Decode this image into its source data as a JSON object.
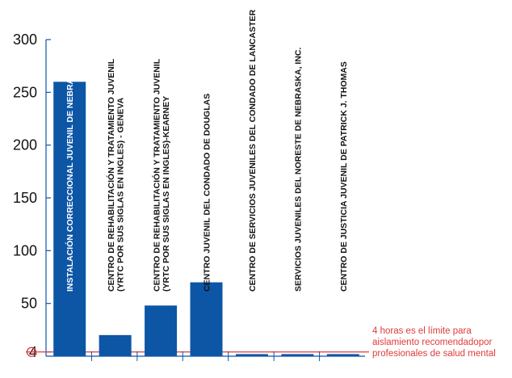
{
  "chart_data": {
    "type": "bar",
    "title": "",
    "xlabel": "",
    "ylabel": "",
    "ylim": [
      0,
      300
    ],
    "yticks": [
      "300",
      "250",
      "200",
      "150",
      "100",
      "50",
      "4"
    ],
    "categories": [
      [
        "INSTALACIÓN CORRECCIONAL JUVENIL DE NEBRASKA"
      ],
      [
        "CENTRO DE REHABILITACIÓN Y TRATAMIENTO JUVENIL",
        "(YRTC POR SUS SIGLAS EN INGLES) - GENEVA"
      ],
      [
        "CENTRO DE REHABILITACIÓN Y TRATAMIENTO JUVENIL",
        "(YRTC POR SUS SIGLAS EN INGLES)-KEARNEY"
      ],
      [
        "CENTRO JUVENIL DEL CONDADO DE DOUGLAS"
      ],
      [
        "CENTRO DE SERVICIOS JUVENILES DEL CONDADO DE LANCASTER"
      ],
      [
        "SERVICIOS JUVENILES DEL NORESTE DE NEBRASKA, INC."
      ],
      [
        "CENTRO DE JUSTICIA JUVENIL DE PATRICK J. THOMAS"
      ]
    ],
    "values": [
      260,
      20,
      48,
      70,
      2,
      2,
      2
    ],
    "reference_line": {
      "value": 4,
      "label_lines": [
        "4 horas es el límite para",
        "aislamiento recomendadopor",
        "profesionales de salud mental"
      ]
    }
  },
  "colors": {
    "bar": "#0d56a6",
    "reference": "#e03a3a",
    "axis": "#0d56a6",
    "bar_label_inside": "#ffffff",
    "bar_label_outside": "#111111"
  }
}
